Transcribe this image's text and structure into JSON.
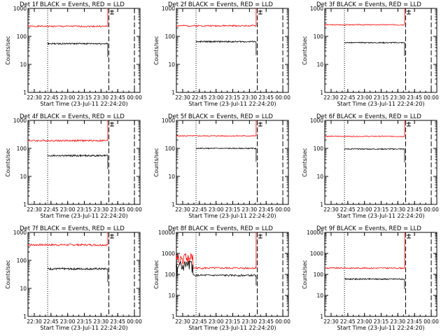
{
  "colors": {
    "events": "#000000",
    "lld": "#ff0000",
    "axis": "#000000",
    "background": "#ffffff"
  },
  "chart_data": [
    {
      "type": "line",
      "title": "Det 1f BLACK = Events, RED = LLD",
      "xlabel": "Start Time (23-Jul-11 22:24:20)",
      "ylabel": "Counts/sec",
      "yscale": "log",
      "ylim": [
        1,
        1000
      ],
      "yticks": [
        "1",
        "10",
        "100",
        "1000"
      ],
      "xticks": [
        "22:30",
        "22:45",
        "23:00",
        "23:15",
        "23:30",
        "23:45",
        "00:00"
      ],
      "x_time_range": [
        "22:24:20",
        "00:05:00"
      ],
      "dotted_line": "22:42",
      "dashed_lines": [
        "23:37",
        "00:00"
      ],
      "red_start": "22:24",
      "red_end": "23:36",
      "red_level": 230,
      "black_start": "22:42",
      "black_end": "23:36",
      "black_level": 55,
      "noise": 0.06,
      "seed": 1
    },
    {
      "type": "line",
      "title": "Det 2f BLACK = Events, RED = LLD",
      "xlabel": "Start Time (23-Jul-11 22:24:20)",
      "ylabel": "Counts/sec",
      "yscale": "log",
      "ylim": [
        1,
        1000
      ],
      "yticks": [
        "1",
        "10",
        "100",
        "1000"
      ],
      "xticks": [
        "22:30",
        "22:45",
        "23:00",
        "23:15",
        "23:30",
        "23:45",
        "00:00"
      ],
      "x_time_range": [
        "22:24:20",
        "00:05:00"
      ],
      "dotted_line": "22:42",
      "dashed_lines": [
        "23:37",
        "00:00"
      ],
      "red_start": "22:24",
      "red_end": "23:36",
      "red_level": 240,
      "black_start": "22:42",
      "black_end": "23:36",
      "black_level": 65,
      "noise": 0.06,
      "seed": 2
    },
    {
      "type": "line",
      "title": "Det 3f BLACK = Events, RED = LLD",
      "xlabel": "Start Time (23-Jul-11 22:24:20)",
      "ylabel": "Counts/sec",
      "yscale": "log",
      "ylim": [
        1,
        1000
      ],
      "yticks": [
        "1",
        "10",
        "100",
        "1000"
      ],
      "xticks": [
        "22:30",
        "22:45",
        "23:00",
        "23:15",
        "23:30",
        "23:45",
        "00:00"
      ],
      "x_time_range": [
        "22:24:20",
        "00:05:00"
      ],
      "dotted_line": "22:42",
      "dashed_lines": [
        "23:37",
        "00:00"
      ],
      "red_start": "22:24",
      "red_end": "23:36",
      "red_level": 260,
      "black_start": "22:42",
      "black_end": "23:36",
      "black_level": 60,
      "noise": 0.04,
      "seed": 3
    },
    {
      "type": "line",
      "title": "Det 4f BLACK = Events, RED = LLD",
      "xlabel": "Start Time (23-Jul-11 22:24:20)",
      "ylabel": "Counts/sec",
      "yscale": "log",
      "ylim": [
        1,
        1000
      ],
      "yticks": [
        "1",
        "10",
        "100",
        "1000"
      ],
      "xticks": [
        "22:30",
        "22:45",
        "23:00",
        "23:15",
        "23:30",
        "23:45",
        "00:00"
      ],
      "x_time_range": [
        "22:24:20",
        "00:05:00"
      ],
      "dotted_line": "22:42",
      "dashed_lines": [
        "23:37",
        "00:00"
      ],
      "red_start": "22:24",
      "red_end": "23:36",
      "red_level": 190,
      "black_start": "22:42",
      "black_end": "23:36",
      "black_level": 55,
      "noise": 0.07,
      "seed": 4
    },
    {
      "type": "line",
      "title": "Det 5f BLACK = Events, RED = LLD",
      "xlabel": "Start Time (23-Jul-11 22:24:20)",
      "ylabel": "Counts/sec",
      "yscale": "log",
      "ylim": [
        1,
        1000
      ],
      "yticks": [
        "1",
        "10",
        "100",
        "1000"
      ],
      "xticks": [
        "22:30",
        "22:45",
        "23:00",
        "23:15",
        "23:30",
        "23:45",
        "00:00"
      ],
      "x_time_range": [
        "22:24:20",
        "00:05:00"
      ],
      "dotted_line": "22:42",
      "dashed_lines": [
        "23:37",
        "00:00"
      ],
      "red_start": "22:24",
      "red_end": "23:36",
      "red_level": 280,
      "black_start": "22:42",
      "black_end": "23:36",
      "black_level": 100,
      "noise": 0.04,
      "seed": 5
    },
    {
      "type": "line",
      "title": "Det 6f BLACK = Events, RED = LLD",
      "xlabel": "Start Time (23-Jul-11 22:24:20)",
      "ylabel": "Counts/sec",
      "yscale": "log",
      "ylim": [
        1,
        1000
      ],
      "yticks": [
        "1",
        "10",
        "100",
        "1000"
      ],
      "xticks": [
        "22:30",
        "22:45",
        "23:00",
        "23:15",
        "23:30",
        "23:45",
        "00:00"
      ],
      "x_time_range": [
        "22:24:20",
        "00:05:00"
      ],
      "dotted_line": "22:42",
      "dashed_lines": [
        "23:37",
        "00:00"
      ],
      "red_start": "22:24",
      "red_end": "23:36",
      "red_level": 270,
      "black_start": "22:42",
      "black_end": "23:36",
      "black_level": 95,
      "noise": 0.04,
      "seed": 6
    },
    {
      "type": "line",
      "title": "Det 7f BLACK = Events, RED = LLD",
      "xlabel": "Start Time (23-Jul-11 22:24:20)",
      "ylabel": "Counts/sec",
      "yscale": "log",
      "ylim": [
        1,
        1000
      ],
      "yticks": [
        "1",
        "10",
        "100",
        "1000"
      ],
      "xticks": [
        "22:30",
        "22:45",
        "23:00",
        "23:15",
        "23:30",
        "23:45",
        "00:00"
      ],
      "x_time_range": [
        "22:24:20",
        "00:05:00"
      ],
      "dotted_line": "22:42",
      "dashed_lines": [
        "23:37",
        "00:00"
      ],
      "red_start": "22:24",
      "red_end": "23:36",
      "red_level": 360,
      "black_start": "22:42",
      "black_end": "23:36",
      "black_level": 50,
      "noise": 0.08,
      "seed": 7
    },
    {
      "type": "line",
      "title": "Det 8f BLACK = Events, RED = LLD",
      "xlabel": "Start Time (23-Jul-11 22:24:20)",
      "ylabel": "Counts/sec",
      "yscale": "log",
      "ylim": [
        1,
        10000
      ],
      "yticks": [
        "1",
        "10",
        "100",
        "1000",
        "10000"
      ],
      "xticks": [
        "22:30",
        "22:45",
        "23:00",
        "23:15",
        "23:30",
        "23:45",
        "00:00"
      ],
      "x_time_range": [
        "22:24:20",
        "00:05:00"
      ],
      "dotted_line": "22:42",
      "dashed_lines": [
        "23:37",
        "00:00"
      ],
      "red_start": "22:24",
      "red_end": "23:36",
      "red_level": 200,
      "black_start": "22:24",
      "black_end": "23:36",
      "black_level": 90,
      "noise": 0.1,
      "seed": 8
    },
    {
      "type": "line",
      "title": "Det 9f BLACK = Events, RED = LLD",
      "xlabel": "Start Time (23-Jul-11 22:24:20)",
      "ylabel": "Counts/sec",
      "yscale": "log",
      "ylim": [
        1,
        10000
      ],
      "yticks": [
        "1",
        "10",
        "100",
        "1000",
        "10000"
      ],
      "xticks": [
        "22:30",
        "22:45",
        "23:00",
        "23:15",
        "23:30",
        "23:45",
        "00:00"
      ],
      "x_time_range": [
        "22:24:20",
        "00:05:00"
      ],
      "dotted_line": "22:42",
      "dashed_lines": [
        "23:37",
        "00:00"
      ],
      "red_start": "22:24",
      "red_end": "23:36",
      "red_level": 200,
      "black_start": "22:42",
      "black_end": "23:36",
      "black_level": 60,
      "noise": 0.07,
      "seed": 9
    }
  ]
}
